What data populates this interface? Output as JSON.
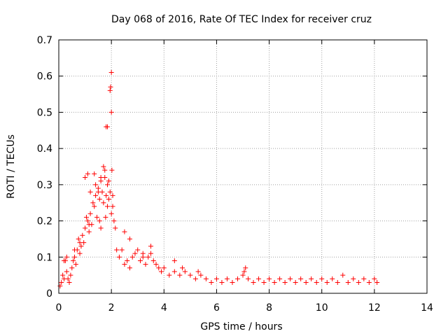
{
  "chart_data": {
    "type": "scatter",
    "title": "Day 068 of 2016, Rate Of TEC Index for receiver cruz",
    "xlabel": "GPS time / hours",
    "ylabel": "ROTI / TECUs",
    "xlim": [
      0,
      14
    ],
    "ylim": [
      0,
      0.7
    ],
    "x_ticks": [
      0,
      2,
      4,
      6,
      8,
      10,
      12,
      14
    ],
    "x_tick_labels": [
      "0",
      "2",
      "4",
      "6",
      "8",
      "10",
      "12",
      "14"
    ],
    "y_ticks": [
      0,
      0.1,
      0.2,
      0.3,
      0.4,
      0.5,
      0.6,
      0.7
    ],
    "y_tick_labels": [
      "0",
      "0.1",
      "0.2",
      "0.3",
      "0.4",
      "0.5",
      "0.6",
      "0.7"
    ],
    "grid": true,
    "marker": "+",
    "series": [
      {
        "name": "ROTI",
        "color": "#ff0000",
        "x": [
          0.05,
          0.1,
          0.15,
          0.2,
          0.25,
          0.3,
          0.35,
          0.4,
          0.45,
          0.5,
          0.55,
          0.6,
          0.65,
          0.7,
          0.75,
          0.8,
          0.85,
          0.9,
          0.95,
          1.0,
          1.05,
          1.1,
          1.15,
          1.2,
          1.25,
          1.3,
          1.35,
          1.4,
          1.45,
          1.5,
          1.55,
          1.6,
          1.65,
          1.7,
          1.75,
          1.8,
          1.85,
          1.9,
          1.95,
          2.0,
          2.05,
          2.1,
          2.15,
          2.2,
          2.3,
          2.4,
          2.5,
          2.6,
          2.7,
          2.8,
          2.9,
          3.0,
          3.1,
          3.2,
          3.3,
          3.4,
          3.5,
          3.6,
          3.7,
          3.8,
          3.9,
          4.0,
          4.2,
          4.4,
          4.6,
          4.8,
          5.0,
          5.2,
          5.4,
          5.6,
          5.8,
          6.0,
          6.2,
          6.4,
          6.6,
          6.8,
          7.0,
          7.1,
          7.2,
          7.4,
          7.6,
          7.8,
          8.0,
          8.2,
          8.4,
          8.6,
          8.8,
          9.0,
          9.2,
          9.4,
          9.6,
          9.8,
          10.0,
          10.2,
          10.4,
          10.6,
          10.8,
          11.0,
          11.2,
          11.4,
          11.6,
          11.8,
          12.0,
          12.1,
          1.0,
          1.1,
          1.2,
          1.35,
          1.4,
          1.5,
          1.6,
          1.7,
          1.75,
          1.8,
          1.85,
          1.9,
          1.95,
          1.97,
          2.0,
          2.0,
          2.02,
          2.05,
          1.78,
          1.85,
          1.55,
          1.6,
          0.2,
          0.3,
          0.6,
          0.8,
          1.15,
          2.5,
          2.7,
          3.2,
          3.5,
          4.4,
          4.7,
          5.3,
          7.05
        ],
        "y": [
          0.02,
          0.03,
          0.05,
          0.04,
          0.09,
          0.06,
          0.04,
          0.03,
          0.05,
          0.07,
          0.09,
          0.1,
          0.08,
          0.12,
          0.15,
          0.11,
          0.13,
          0.16,
          0.14,
          0.18,
          0.21,
          0.2,
          0.17,
          0.22,
          0.19,
          0.25,
          0.24,
          0.27,
          0.21,
          0.29,
          0.26,
          0.31,
          0.28,
          0.25,
          0.32,
          0.27,
          0.3,
          0.26,
          0.28,
          0.22,
          0.24,
          0.2,
          0.18,
          0.12,
          0.1,
          0.12,
          0.08,
          0.09,
          0.07,
          0.1,
          0.11,
          0.12,
          0.09,
          0.1,
          0.08,
          0.1,
          0.11,
          0.09,
          0.08,
          0.07,
          0.06,
          0.07,
          0.05,
          0.06,
          0.05,
          0.06,
          0.05,
          0.04,
          0.05,
          0.04,
          0.03,
          0.04,
          0.03,
          0.04,
          0.03,
          0.04,
          0.05,
          0.07,
          0.04,
          0.03,
          0.04,
          0.03,
          0.04,
          0.03,
          0.04,
          0.03,
          0.04,
          0.03,
          0.04,
          0.03,
          0.04,
          0.03,
          0.04,
          0.03,
          0.04,
          0.03,
          0.05,
          0.03,
          0.04,
          0.03,
          0.04,
          0.03,
          0.04,
          0.03,
          0.32,
          0.33,
          0.28,
          0.33,
          0.3,
          0.28,
          0.32,
          0.35,
          0.34,
          0.46,
          0.46,
          0.31,
          0.56,
          0.57,
          0.61,
          0.5,
          0.34,
          0.27,
          0.21,
          0.24,
          0.2,
          0.18,
          0.09,
          0.1,
          0.12,
          0.14,
          0.19,
          0.17,
          0.15,
          0.11,
          0.13,
          0.09,
          0.07,
          0.06,
          0.06
        ]
      }
    ]
  },
  "colors": {
    "marker": "#ff0000",
    "grid": "#a0a0a0",
    "axis": "#000000"
  }
}
